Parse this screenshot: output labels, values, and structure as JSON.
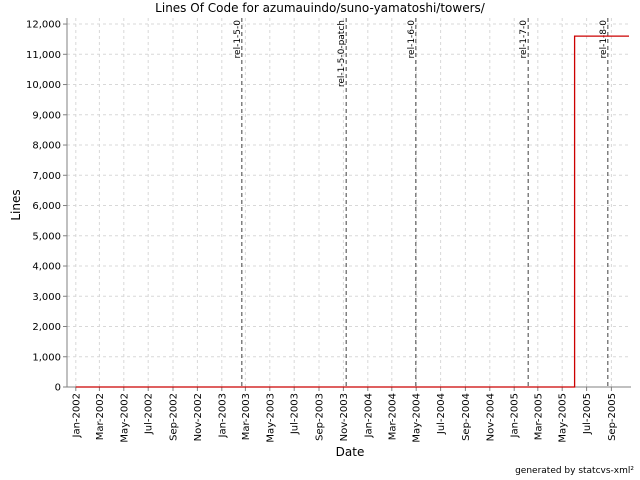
{
  "chart_data": {
    "type": "line",
    "title": "Lines Of Code for azumauindo/suno-yamatoshi/towers/",
    "xlabel": "Date",
    "ylabel": "Lines",
    "ylim": [
      0,
      12200
    ],
    "xlim": [
      "2001-12-10",
      "2005-10-20"
    ],
    "y_ticks": [
      0,
      1000,
      2000,
      3000,
      4000,
      5000,
      6000,
      7000,
      8000,
      9000,
      10000,
      11000,
      12000
    ],
    "y_tick_labels": [
      "0",
      "1,000",
      "2,000",
      "3,000",
      "4,000",
      "5,000",
      "6,000",
      "7,000",
      "8,000",
      "9,000",
      "10,000",
      "11,000",
      "12,000"
    ],
    "x_ticks": [
      "2002-01-01",
      "2002-03-01",
      "2002-05-01",
      "2002-07-01",
      "2002-09-01",
      "2002-11-01",
      "2003-01-01",
      "2003-03-01",
      "2003-05-01",
      "2003-07-01",
      "2003-09-01",
      "2003-11-01",
      "2004-01-01",
      "2004-03-01",
      "2004-05-01",
      "2004-07-01",
      "2004-09-01",
      "2004-11-01",
      "2005-01-01",
      "2005-03-01",
      "2005-05-01",
      "2005-07-01",
      "2005-09-01"
    ],
    "x_tick_labels": [
      "Jan-2002",
      "Mar-2002",
      "May-2002",
      "Jul-2002",
      "Sep-2002",
      "Nov-2002",
      "Jan-2003",
      "Mar-2003",
      "May-2003",
      "Jul-2003",
      "Sep-2003",
      "Nov-2003",
      "Jan-2004",
      "Mar-2004",
      "May-2004",
      "Jul-2004",
      "Sep-2004",
      "Nov-2004",
      "Jan-2005",
      "Mar-2005",
      "May-2005",
      "Jul-2005",
      "Sep-2005"
    ],
    "grid": true,
    "series": [
      {
        "color": "#cc0000",
        "points": [
          {
            "x": "2002-01-01",
            "y": 0
          },
          {
            "x": "2005-06-01",
            "y": 0
          },
          {
            "x": "2005-06-01",
            "y": 11600
          },
          {
            "x": "2005-10-15",
            "y": 11600
          }
        ]
      }
    ],
    "markers": [
      {
        "label": "rel-1-5-0",
        "x": "2003-02-20"
      },
      {
        "label": "rel-1-5-0-patch",
        "x": "2003-11-08"
      },
      {
        "label": "rel-1-6-0",
        "x": "2004-04-30"
      },
      {
        "label": "rel-1-7-0",
        "x": "2005-02-05"
      },
      {
        "label": "rel-1-8-0",
        "x": "2005-08-23"
      }
    ],
    "footer": "generated by statcvs-xml²"
  }
}
